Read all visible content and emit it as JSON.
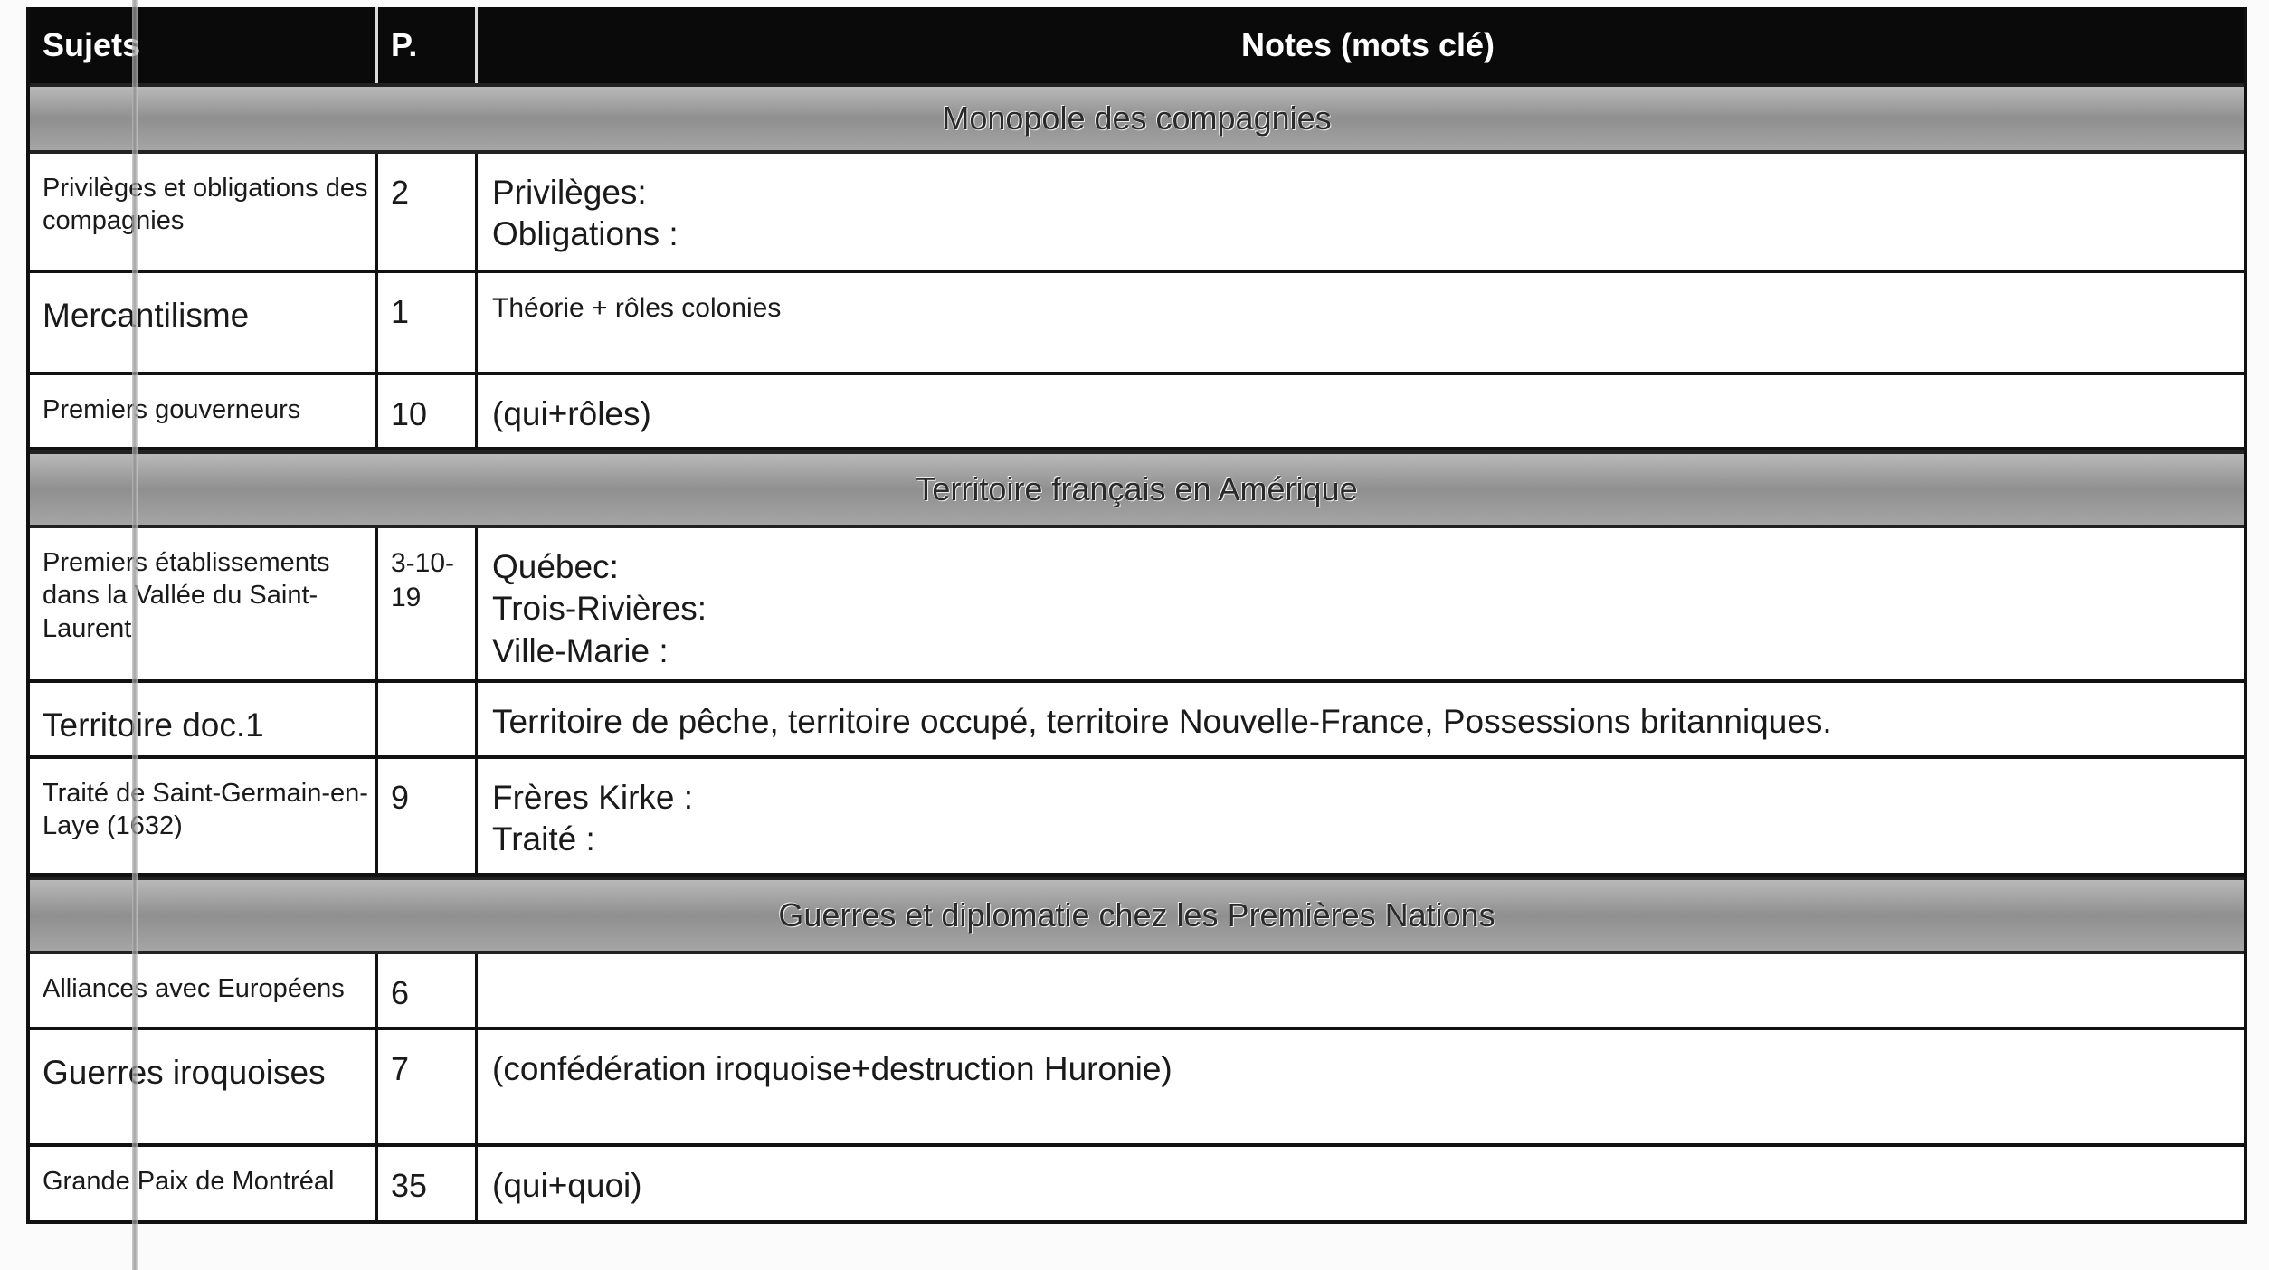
{
  "header": {
    "subject": "Sujets",
    "page": "P.",
    "notes": "Notes (mots clé)"
  },
  "rows": [
    {
      "type": "band",
      "title": "Monopole des compagnies"
    },
    {
      "type": "row",
      "subject": "Privilèges et obligations des compagnies",
      "page": "2",
      "notes": [
        "Privilèges:",
        "Obligations :"
      ]
    },
    {
      "type": "row",
      "subject": "Mercantilisme",
      "page": "1",
      "notes": [
        "Théorie + rôles colonies"
      ]
    },
    {
      "type": "row",
      "subject": "Premiers gouverneurs",
      "page": "10",
      "notes": [
        "(qui+rôles)"
      ]
    },
    {
      "type": "band",
      "title": "Territoire français en Amérique"
    },
    {
      "type": "row",
      "subject": "Premiers établissements dans la Vallée du Saint-Laurent",
      "page": "3-10-19",
      "notes": [
        "Québec:",
        "Trois-Rivières:",
        "Ville-Marie :"
      ]
    },
    {
      "type": "row",
      "subject": "Territoire doc.1",
      "page": "",
      "notes": [
        "Territoire de pêche, territoire occupé,  territoire Nouvelle-France, Possessions britanniques."
      ]
    },
    {
      "type": "row",
      "subject": "Traité de Saint-Germain-en-Laye (1632)",
      "page": "9",
      "notes": [
        "Frères Kirke :",
        "Traité :"
      ]
    },
    {
      "type": "band",
      "title": "Guerres et diplomatie chez les Premières Nations"
    },
    {
      "type": "row",
      "subject": "Alliances avec Européens",
      "page": "6",
      "notes": []
    },
    {
      "type": "row",
      "subject": "Guerres iroquoises",
      "page": "7",
      "notes": [
        "(confédération iroquoise+destruction Huronie)"
      ]
    },
    {
      "type": "row",
      "subject": "Grande Paix de Montréal",
      "page": "35",
      "notes": [
        "(qui+quoi)"
      ]
    }
  ]
}
